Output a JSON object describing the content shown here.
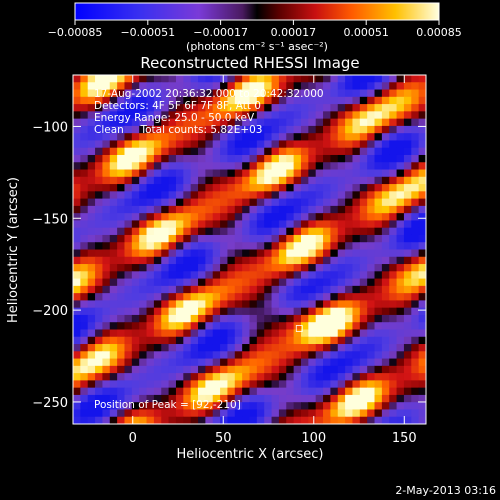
{
  "chart_data": {
    "type": "heatmap",
    "title": "Reconstructed RHESSI Image",
    "xlabel": "Heliocentric X (arcsec)",
    "ylabel": "Heliocentric Y (arcsec)",
    "xlim": [
      -33,
      162
    ],
    "ylim": [
      -262,
      -72
    ],
    "x_ticks": [
      0,
      50,
      100,
      150
    ],
    "y_ticks": [
      -100,
      -150,
      -200,
      -250
    ],
    "x_tick_labels": [
      "0",
      "50",
      "100",
      "150"
    ],
    "y_tick_labels": [
      "−100",
      "−150",
      "−200",
      "−250"
    ],
    "colorbar": {
      "range": [
        -0.00085,
        0.00085
      ],
      "ticks": [
        -0.00085,
        -0.00051,
        -0.00017,
        0.00017,
        0.00051,
        0.00085
      ],
      "tick_labels": [
        "−0.00085",
        "−0.00051",
        "−0.00017",
        "0.00017",
        "0.00051",
        "0.00085"
      ],
      "unit_label": "(photons cm⁻² s⁻¹ asec⁻²)"
    },
    "annotations": {
      "time_range": "17-Aug-2002 20:36:32.000 to 20:42:32.000",
      "detectors": "Detectors: 4F 5F 6F 7F 8F, Att 0",
      "energy": "Energy Range: 25.0 - 50.0 keV",
      "method": "Clean     Total counts: 5.82E+03",
      "peak": "Position of Peak = [92,-210]"
    },
    "peak": {
      "x": 92,
      "y": -210
    },
    "colors": {
      "background": "#000000",
      "text": "#ffffff"
    }
  },
  "footer": {
    "date": "2-May-2013 03:16"
  }
}
